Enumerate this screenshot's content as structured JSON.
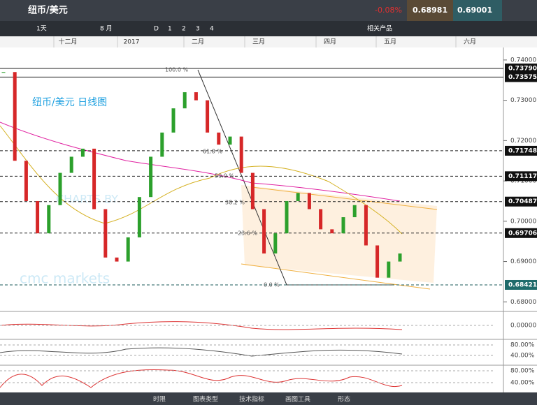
{
  "header": {
    "title": "纽币/美元",
    "change": "-0.08%",
    "bid": "0.68981",
    "ask": "0.69001"
  },
  "toolbar": {
    "interval": "1天",
    "range": "8 月",
    "buttons": [
      "D",
      "1",
      "2",
      "3",
      "4"
    ],
    "related": "相关产品"
  },
  "chart": {
    "type": "candlestick",
    "label": "纽币/美元 日线图",
    "watermark": [
      "CHARTS BY",
      "cmc markets"
    ],
    "months": [
      "十二月",
      "2017",
      "二月",
      "三月",
      "四月",
      "五月",
      "六月"
    ],
    "ylim": [
      0.6778,
      0.7431
    ],
    "yticks": [
      {
        "value": 0.74,
        "label": "0.74000"
      },
      {
        "value": 0.73,
        "label": "0.73000"
      },
      {
        "value": 0.72,
        "label": "0.72000"
      },
      {
        "value": 0.71,
        "label": "0.71000"
      },
      {
        "value": 0.7,
        "label": "0.70000"
      },
      {
        "value": 0.69,
        "label": "0.69000"
      },
      {
        "value": 0.68,
        "label": "0.68000"
      }
    ],
    "levels": [
      {
        "value": 0.7379,
        "label": "0.73790"
      },
      {
        "value": 0.73575,
        "label": "0.73575"
      },
      {
        "value": 0.71748,
        "label": "0.71748"
      },
      {
        "value": 0.71117,
        "label": "0.71117"
      },
      {
        "value": 0.70487,
        "label": "0.70487"
      },
      {
        "value": 0.69706,
        "label": "0.69706"
      },
      {
        "value": 0.68421,
        "label": "0.68421"
      }
    ],
    "fib_labels": [
      "100.0 %",
      "61.8 %",
      "50.0 %",
      "38.2 %",
      "23.6 %",
      "0.0 %"
    ],
    "closes": [
      0.737,
      0.715,
      0.705,
      0.697,
      0.704,
      0.712,
      0.716,
      0.718,
      0.703,
      0.691,
      0.69,
      0.696,
      0.706,
      0.716,
      0.722,
      0.728,
      0.732,
      0.73,
      0.722,
      0.719,
      0.721,
      0.712,
      0.703,
      0.692,
      0.697,
      0.705,
      0.707,
      0.703,
      0.698,
      0.697,
      0.701,
      0.704,
      0.694,
      0.686,
      0.69,
      0.692
    ]
  },
  "macd": {
    "ticks": [
      "0.00000"
    ]
  },
  "indicator2": {
    "ticks": [
      "80.00%",
      "40.00%"
    ]
  },
  "stoch": {
    "ticks": [
      "80.00%",
      "40.00%"
    ]
  },
  "bottom_menu": [
    "时限",
    "图表类型",
    "技术指标",
    "画图工具",
    "形态"
  ]
}
